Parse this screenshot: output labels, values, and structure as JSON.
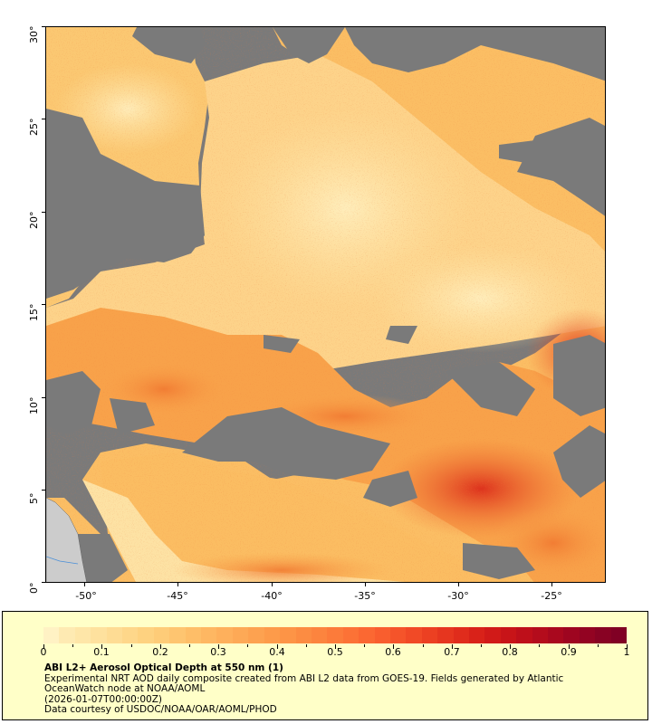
{
  "map": {
    "lat_labels": [
      "30°",
      "25°",
      "20°",
      "15°",
      "10°",
      "5°",
      "0°"
    ],
    "lon_labels": [
      "-50°",
      "-45°",
      "-40°",
      "-35°",
      "-30°",
      "-25°"
    ],
    "colors": {
      "no_data": "#7a7a7a",
      "land": "#cccccc",
      "low": "#fde7a8",
      "mid": "#f9a34a",
      "high": "#d81e15",
      "very_high": "#7f0021"
    }
  },
  "legend": {
    "scale_labels": [
      "0",
      "0.1",
      "0.2",
      "0.3",
      "0.4",
      "0.5",
      "0.6",
      "0.7",
      "0.8",
      "0.9",
      "1"
    ],
    "title": "ABI L2+ Aerosol Optical Depth at 550 nm (1)",
    "description_line1": "Experimental NRT AOD daily composite created from ABI L2 data from GOES-19. Fields generated by Atlantic",
    "description_line2": "OceanWatch node at NOAA/AOML",
    "timestamp": "(2026-01-07T00:00:00Z)",
    "credit": "Data courtesy of USDOC/NOAA/OAR/AOML/PHOD"
  }
}
